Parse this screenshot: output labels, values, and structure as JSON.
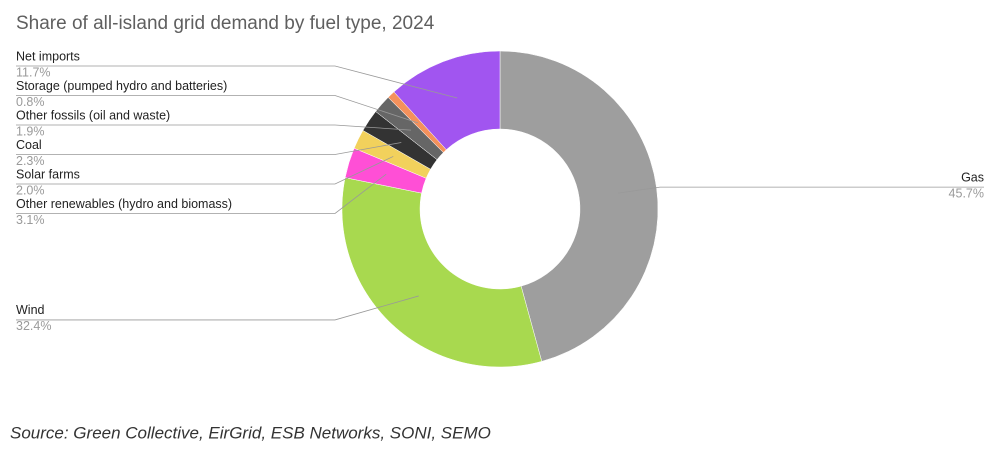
{
  "chart_data": {
    "type": "pie",
    "title": "Share of all-island grid demand by fuel type, 2024",
    "categories": [
      "Gas",
      "Wind",
      "Other renewables (hydro and biomass)",
      "Solar farms",
      "Coal",
      "Other fossils (oil and waste)",
      "Storage (pumped hydro and batteries)",
      "Net imports"
    ],
    "values": [
      45.7,
      32.4,
      3.1,
      2.0,
      2.3,
      1.9,
      0.8,
      11.7
    ],
    "value_labels": [
      "45.7%",
      "32.4%",
      "3.1%",
      "2.0%",
      "2.3%",
      "1.9%",
      "0.8%",
      "11.7%"
    ],
    "colors": [
      "#9e9e9e",
      "#a8d94f",
      "#ff4fd6",
      "#f2d15c",
      "#333333",
      "#666666",
      "#f4915c",
      "#a155f0"
    ],
    "source": "Source: Green Collective, EirGrid, ESB Networks, SONI, SEMO"
  }
}
